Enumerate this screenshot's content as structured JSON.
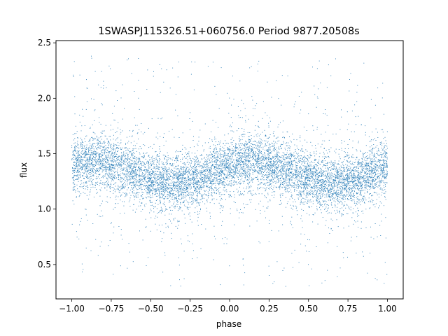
{
  "chart_data": {
    "type": "scatter",
    "title": "1SWASPJ115326.51+060756.0 Period 9877.20508s",
    "xlabel": "phase",
    "ylabel": "flux",
    "xlim": [
      -1.1,
      1.1
    ],
    "ylim": [
      0.19,
      2.52
    ],
    "x_ticks": [
      -1.0,
      -0.75,
      -0.5,
      -0.25,
      0.0,
      0.25,
      0.5,
      0.75,
      1.0
    ],
    "x_tick_labels": [
      "−1.00",
      "−0.75",
      "−0.50",
      "−0.25",
      "0.00",
      "0.25",
      "0.50",
      "0.75",
      "1.00"
    ],
    "y_ticks": [
      0.5,
      1.0,
      1.5,
      2.0,
      2.5
    ],
    "y_tick_labels": [
      "0.5",
      "1.0",
      "1.5",
      "2.0",
      "2.5"
    ],
    "grid": false,
    "marker_color": "#1f77b4",
    "series_model": {
      "phase_range": [
        -1.0,
        1.0
      ],
      "baseline_flux": 1.33,
      "modulation_amplitude": 0.1,
      "maximum_phase": 0.15,
      "period_in_phase": 1.0,
      "core_scatter": 0.12,
      "outlier_flux_range": [
        0.3,
        2.4
      ],
      "point_count": 9000
    }
  }
}
